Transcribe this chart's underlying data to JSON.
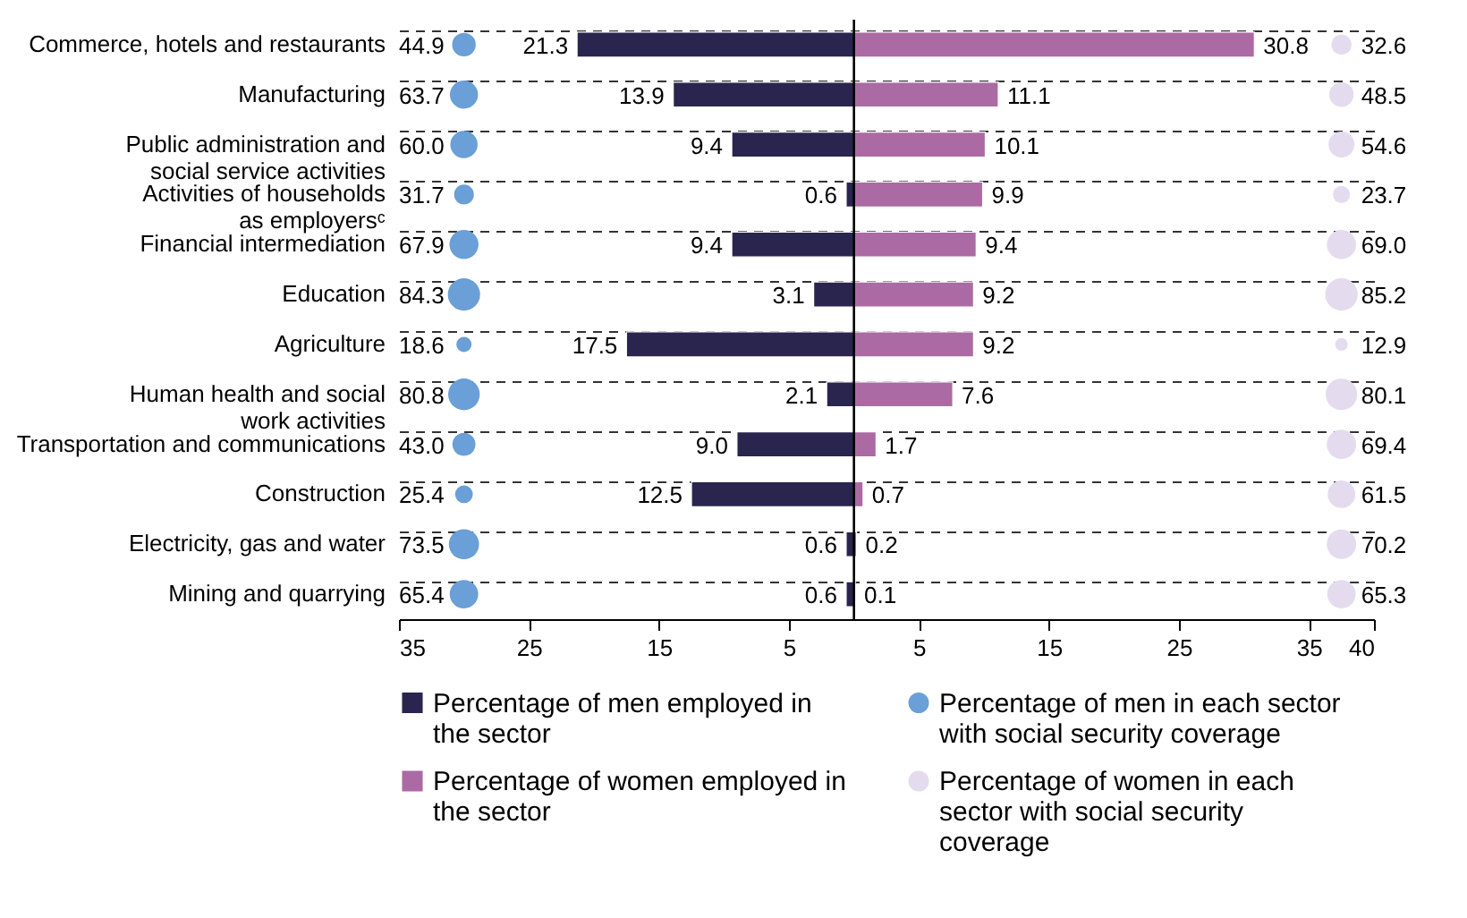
{
  "chart_data": {
    "type": "bar",
    "orientation": "horizontal",
    "categories": [
      "Commerce, hotels and restaurants",
      "Manufacturing",
      "Public administration and social service activities",
      "Activities of households as employersᶜ",
      "Financial intermediation",
      "Education",
      "Agriculture",
      "Human health and social work activities",
      "Transportation and communications",
      "Construction",
      "Electricity, gas and water",
      "Mining and quarrying"
    ],
    "series": [
      {
        "name": "Percentage of men employed in the sector",
        "color": "#29254f",
        "base": [
          -21.3,
          -13.9,
          -9.4,
          -0.6,
          -9.4,
          -3.1,
          -17.5,
          -2.1,
          -9.0,
          -12.5,
          -0.6,
          -0.6
        ],
        "values": [
          21.3,
          13.9,
          9.4,
          0.6,
          9.4,
          3.1,
          17.5,
          2.1,
          9.0,
          12.5,
          0.6,
          0.6
        ],
        "value_labels": [
          "21.3",
          "13.9",
          "9.4",
          "0.6",
          "9.4",
          "3.1",
          "17.5",
          "2.1",
          "9.0",
          "12.5",
          "0.6",
          "0.6"
        ]
      },
      {
        "name": "Percentage of men in each sector with social security coverage",
        "type": "bubble",
        "color": "#6a9fd8",
        "values": [
          -30,
          -30,
          -30,
          -30,
          -30,
          -30,
          -30,
          -30,
          -30,
          -30,
          -30,
          -30
        ],
        "sizes": [
          44.9,
          63.7,
          60.0,
          31.7,
          67.9,
          84.3,
          18.6,
          80.8,
          43.0,
          25.4,
          73.5,
          65.4
        ],
        "value_labels": [
          "44.9",
          "63.7",
          "60.0",
          "31.7",
          "67.9",
          "84.3",
          "18.6",
          "80.8",
          "43.0",
          "25.4",
          "73.5",
          "65.4"
        ]
      },
      {
        "name": "Percentage of women employed in the sector",
        "color": "#ab6aa3",
        "values": [
          30.8,
          11.1,
          10.1,
          9.9,
          9.4,
          9.2,
          9.2,
          7.6,
          1.7,
          0.7,
          0.2,
          0.1
        ],
        "value_labels": [
          "30.8",
          "11.1",
          "10.1",
          "9.9",
          "9.4",
          "9.2",
          "9.2",
          "7.6",
          "1.7",
          "0.7",
          "0.2",
          "0.1"
        ]
      },
      {
        "name": "Percentage of women in each sector with social security coverage",
        "type": "bubble",
        "color": "#e5dbee",
        "values": [
          37.5,
          37.5,
          37.5,
          37.5,
          37.5,
          37.5,
          37.5,
          37.5,
          37.5,
          37.5,
          37.5,
          37.5
        ],
        "sizes": [
          32.6,
          48.5,
          54.6,
          23.7,
          69.0,
          85.2,
          12.9,
          80.1,
          69.4,
          61.5,
          70.2,
          65.3
        ],
        "value_labels": [
          "32.6",
          "48.5",
          "54.6",
          "23.7",
          "69.0",
          "85.2",
          "12.9",
          "80.1",
          "69.4",
          "61.5",
          "70.2",
          "65.3"
        ]
      }
    ],
    "xlim": [
      -35,
      40
    ],
    "xticks": [
      {
        "value": -35,
        "label": "35"
      },
      {
        "value": -25,
        "label": "25"
      },
      {
        "value": -15,
        "label": "15"
      },
      {
        "value": -5,
        "label": "5"
      },
      5,
      15,
      25,
      35,
      40
    ],
    "ref_lines": [
      {
        "axis": "x",
        "value": 0
      }
    ],
    "grid": "y",
    "legend": "bottom"
  }
}
